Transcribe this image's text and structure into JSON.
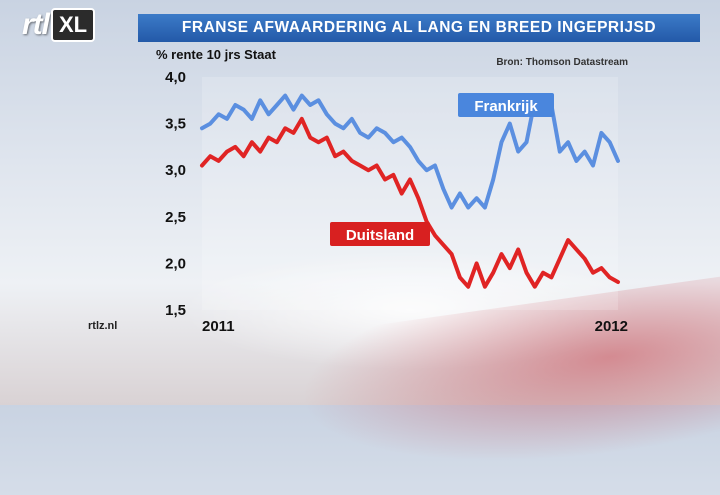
{
  "header": {
    "logo_text": "rtl",
    "logo_badge": "XL",
    "title": "FRANSE AFWAARDERING AL LANG EN BREED INGEPRIJSD"
  },
  "footer": {
    "site": "rtlz.nl"
  },
  "colors": {
    "frankrijk": "#5b8fe0",
    "duitsland": "#e02424",
    "title_bar": "#2d63b0",
    "frankrijk_label_bg": "#4a86dd",
    "duitsland_label_bg": "#d82020"
  },
  "chart_data": {
    "type": "line",
    "ylabel": "% rente 10 jrs Staat",
    "source": "Bron: Thomson Datastream",
    "ylim": [
      1.5,
      4.0
    ],
    "yticks": [
      "4,0",
      "3,5",
      "3,0",
      "2,5",
      "2,0",
      "1,5"
    ],
    "yticks_values": [
      4.0,
      3.5,
      3.0,
      2.5,
      2.0,
      1.5
    ],
    "xticks": [
      "2011",
      "2012"
    ],
    "xticks_values": [
      0,
      1
    ],
    "xlim": [
      0,
      1
    ],
    "grid": false,
    "series": [
      {
        "name": "Frankrijk",
        "x": [
          0,
          0.02,
          0.04,
          0.06,
          0.08,
          0.1,
          0.12,
          0.14,
          0.16,
          0.18,
          0.2,
          0.22,
          0.24,
          0.26,
          0.28,
          0.3,
          0.32,
          0.34,
          0.36,
          0.38,
          0.4,
          0.42,
          0.44,
          0.46,
          0.48,
          0.5,
          0.52,
          0.54,
          0.56,
          0.58,
          0.6,
          0.62,
          0.64,
          0.66,
          0.68,
          0.7,
          0.72,
          0.74,
          0.76,
          0.78,
          0.8,
          0.82,
          0.84,
          0.86,
          0.88,
          0.9,
          0.92,
          0.94,
          0.96,
          0.98,
          1.0
        ],
        "values": [
          3.45,
          3.5,
          3.6,
          3.55,
          3.7,
          3.65,
          3.55,
          3.75,
          3.6,
          3.7,
          3.8,
          3.65,
          3.8,
          3.7,
          3.75,
          3.6,
          3.5,
          3.45,
          3.55,
          3.4,
          3.35,
          3.45,
          3.4,
          3.3,
          3.35,
          3.25,
          3.1,
          3.0,
          3.05,
          2.8,
          2.6,
          2.75,
          2.6,
          2.7,
          2.6,
          2.9,
          3.3,
          3.5,
          3.2,
          3.3,
          3.75,
          3.6,
          3.7,
          3.2,
          3.3,
          3.1,
          3.2,
          3.05,
          3.4,
          3.3,
          3.1
        ]
      },
      {
        "name": "Duitsland",
        "x": [
          0,
          0.02,
          0.04,
          0.06,
          0.08,
          0.1,
          0.12,
          0.14,
          0.16,
          0.18,
          0.2,
          0.22,
          0.24,
          0.26,
          0.28,
          0.3,
          0.32,
          0.34,
          0.36,
          0.38,
          0.4,
          0.42,
          0.44,
          0.46,
          0.48,
          0.5,
          0.52,
          0.54,
          0.56,
          0.58,
          0.6,
          0.62,
          0.64,
          0.66,
          0.68,
          0.7,
          0.72,
          0.74,
          0.76,
          0.78,
          0.8,
          0.82,
          0.84,
          0.86,
          0.88,
          0.9,
          0.92,
          0.94,
          0.96,
          0.98,
          1.0
        ],
        "values": [
          3.05,
          3.15,
          3.1,
          3.2,
          3.25,
          3.15,
          3.3,
          3.2,
          3.35,
          3.3,
          3.45,
          3.4,
          3.55,
          3.35,
          3.3,
          3.35,
          3.15,
          3.2,
          3.1,
          3.05,
          3.0,
          3.05,
          2.9,
          2.95,
          2.75,
          2.9,
          2.7,
          2.45,
          2.3,
          2.2,
          2.1,
          1.85,
          1.75,
          2.0,
          1.75,
          1.9,
          2.1,
          1.95,
          2.15,
          1.9,
          1.75,
          1.9,
          1.85,
          2.05,
          2.25,
          2.15,
          2.05,
          1.9,
          1.95,
          1.85,
          1.8
        ]
      }
    ]
  }
}
